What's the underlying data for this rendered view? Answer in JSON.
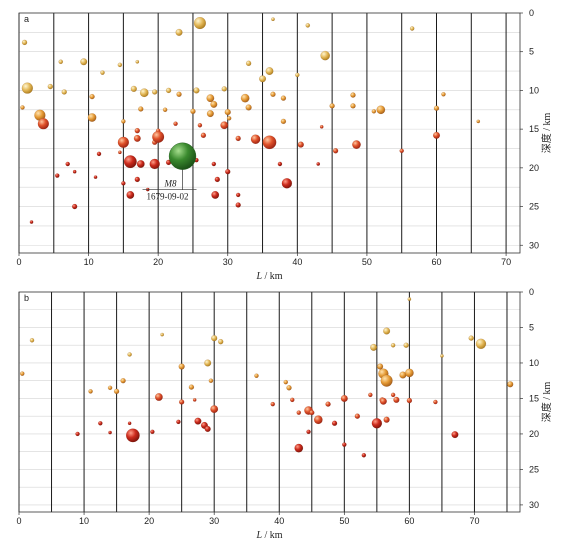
{
  "chart_data": [
    {
      "panel": "a",
      "type": "scatter",
      "xlabel_var": "L",
      "xlabel_unit": "km",
      "ylabel": "深度 / km",
      "xlim": [
        0,
        72
      ],
      "ylim": [
        0,
        31
      ],
      "y_inverted": true,
      "xticks": [
        "0",
        "10",
        "20",
        "30",
        "40",
        "50",
        "60",
        "70"
      ],
      "yticks": [
        "0",
        "5",
        "10",
        "15",
        "20",
        "25",
        "30"
      ],
      "grid": true,
      "vertical_lines_x": [
        0,
        5,
        10,
        15,
        20,
        25,
        30,
        35,
        40,
        45,
        50,
        55,
        60,
        65,
        70
      ],
      "annotation": {
        "magnitude": "M8",
        "date": "1679-09-02",
        "x": 23.5,
        "y": 18.5,
        "size": 3.2,
        "color": "#3a8a2e"
      },
      "points": [
        [
          26,
          1.3,
          1.4
        ],
        [
          23,
          2.5,
          0.8
        ],
        [
          0.8,
          3.8,
          0.6
        ],
        [
          36.5,
          0.8,
          0.4
        ],
        [
          41.5,
          1.6,
          0.5
        ],
        [
          56.5,
          2,
          0.5
        ],
        [
          9.3,
          6.3,
          0.8
        ],
        [
          14.5,
          6.7,
          0.5
        ],
        [
          6,
          6.3,
          0.5
        ],
        [
          12,
          7.7,
          0.5
        ],
        [
          17,
          6.3,
          0.4
        ],
        [
          33,
          6.5,
          0.6
        ],
        [
          36,
          7.5,
          0.9
        ],
        [
          44,
          5.5,
          1.1
        ],
        [
          35,
          8.5,
          0.8
        ],
        [
          40,
          8,
          0.5
        ],
        [
          1.2,
          9.7,
          1.3
        ],
        [
          4.5,
          9.5,
          0.6
        ],
        [
          6.5,
          10.2,
          0.6
        ],
        [
          10.5,
          10.8,
          0.6
        ],
        [
          16.5,
          9.8,
          0.7
        ],
        [
          18,
          10.3,
          1.0
        ],
        [
          19.5,
          10.2,
          0.6
        ],
        [
          21.5,
          10,
          0.6
        ],
        [
          23,
          10.5,
          0.6
        ],
        [
          25.5,
          10,
          0.7
        ],
        [
          27.5,
          11,
          0.9
        ],
        [
          29.5,
          9.8,
          0.6
        ],
        [
          32.5,
          11,
          1.0
        ],
        [
          36.5,
          10.5,
          0.6
        ],
        [
          38,
          11,
          0.6
        ],
        [
          48,
          10.6,
          0.6
        ],
        [
          61,
          10.5,
          0.5
        ],
        [
          0.5,
          12.2,
          0.5
        ],
        [
          3,
          13.2,
          1.3
        ],
        [
          3.5,
          14.3,
          1.3
        ],
        [
          10.5,
          13.5,
          1.0
        ],
        [
          17.5,
          12.4,
          0.6
        ],
        [
          21,
          12.5,
          0.5
        ],
        [
          25,
          12.7,
          0.6
        ],
        [
          27.5,
          13,
          0.8
        ],
        [
          28,
          11.8,
          0.8
        ],
        [
          30,
          12.8,
          0.7
        ],
        [
          33,
          12.2,
          0.7
        ],
        [
          38,
          14,
          0.6
        ],
        [
          45,
          12,
          0.6
        ],
        [
          48,
          12,
          0.6
        ],
        [
          52,
          12.5,
          1.0
        ],
        [
          51,
          12.7,
          0.5
        ],
        [
          15,
          14,
          0.5
        ],
        [
          17,
          15.2,
          0.6
        ],
        [
          20,
          15.2,
          0.5
        ],
        [
          22.5,
          14.3,
          0.5
        ],
        [
          26,
          14.5,
          0.5
        ],
        [
          29.5,
          14.5,
          0.9
        ],
        [
          30.2,
          13.6,
          0.5
        ],
        [
          43.5,
          14.7,
          0.4
        ],
        [
          60,
          12.3,
          0.6
        ],
        [
          66,
          14,
          0.4
        ],
        [
          15,
          16.7,
          1.3
        ],
        [
          17,
          16.2,
          0.8
        ],
        [
          19.5,
          16.7,
          0.6
        ],
        [
          20,
          16,
          1.4
        ],
        [
          26.5,
          15.8,
          0.6
        ],
        [
          31.5,
          16.2,
          0.6
        ],
        [
          36,
          16.7,
          1.6
        ],
        [
          34,
          16.3,
          1.1
        ],
        [
          40.5,
          17,
          0.7
        ],
        [
          48.5,
          17,
          1.0
        ],
        [
          45.5,
          17.8,
          0.6
        ],
        [
          60,
          15.8,
          0.8
        ],
        [
          55,
          17.8,
          0.5
        ],
        [
          11.5,
          18.2,
          0.5
        ],
        [
          14.5,
          18,
          0.4
        ],
        [
          16,
          19.2,
          1.5
        ],
        [
          17.5,
          19.5,
          0.9
        ],
        [
          19.5,
          19.5,
          1.2
        ],
        [
          21.5,
          19.3,
          0.6
        ],
        [
          25.5,
          19,
          0.5
        ],
        [
          28,
          19.5,
          0.5
        ],
        [
          30,
          20.5,
          0.6
        ],
        [
          37.5,
          19.5,
          0.5
        ],
        [
          43,
          19.5,
          0.4
        ],
        [
          7,
          19.5,
          0.5
        ],
        [
          5.5,
          21,
          0.5
        ],
        [
          8,
          20.5,
          0.4
        ],
        [
          11,
          21.2,
          0.4
        ],
        [
          15,
          22,
          0.5
        ],
        [
          17,
          21.5,
          0.6
        ],
        [
          18.5,
          22.8,
          0.4
        ],
        [
          28.5,
          21.5,
          0.6
        ],
        [
          38.5,
          22,
          1.2
        ],
        [
          31.5,
          23.5,
          0.5
        ],
        [
          16,
          23.5,
          0.9
        ],
        [
          28.2,
          23.5,
          0.9
        ],
        [
          31.5,
          24.8,
          0.6
        ],
        [
          8,
          25,
          0.6
        ],
        [
          1.8,
          27,
          0.4
        ]
      ]
    },
    {
      "panel": "b",
      "type": "scatter",
      "xlabel_var": "L",
      "xlabel_unit": "km",
      "ylabel": "深度 / km",
      "xlim": [
        0,
        77
      ],
      "ylim": [
        0,
        31
      ],
      "y_inverted": true,
      "xticks": [
        "0",
        "10",
        "20",
        "30",
        "40",
        "50",
        "60",
        "70"
      ],
      "yticks": [
        "0",
        "5",
        "10",
        "15",
        "20",
        "25",
        "30"
      ],
      "grid": true,
      "vertical_lines_x": [
        0,
        5,
        10,
        15,
        20,
        25,
        30,
        35,
        40,
        45,
        50,
        55,
        60,
        65,
        70,
        75
      ],
      "points": [
        [
          60,
          1,
          0.4
        ],
        [
          2,
          6.8,
          0.5
        ],
        [
          22,
          6,
          0.4
        ],
        [
          30,
          6.5,
          0.7
        ],
        [
          31,
          7,
          0.6
        ],
        [
          54.5,
          7.8,
          0.8
        ],
        [
          56.5,
          5.5,
          0.8
        ],
        [
          57.5,
          7.5,
          0.5
        ],
        [
          59.5,
          7.5,
          0.6
        ],
        [
          69.5,
          6.5,
          0.6
        ],
        [
          71,
          7.3,
          1.2
        ],
        [
          17,
          8.8,
          0.5
        ],
        [
          25,
          10.5,
          0.7
        ],
        [
          29,
          10,
          0.8
        ],
        [
          36.5,
          11.8,
          0.5
        ],
        [
          55.5,
          10.5,
          0.7
        ],
        [
          56,
          11.5,
          1.2
        ],
        [
          56.5,
          12.5,
          1.4
        ],
        [
          59,
          11.7,
          0.8
        ],
        [
          60,
          11.4,
          1.0
        ],
        [
          65,
          9,
          0.4
        ],
        [
          0.5,
          11.5,
          0.5
        ],
        [
          14,
          13.5,
          0.5
        ],
        [
          16,
          12.5,
          0.6
        ],
        [
          15,
          14,
          0.6
        ],
        [
          26.5,
          13.4,
          0.6
        ],
        [
          29.5,
          12.5,
          0.5
        ],
        [
          41,
          12.7,
          0.5
        ],
        [
          41.5,
          13.5,
          0.6
        ],
        [
          54,
          14.5,
          0.5
        ],
        [
          55.8,
          15.2,
          0.6
        ],
        [
          57.5,
          14.5,
          0.5
        ],
        [
          75.5,
          13,
          0.7
        ],
        [
          11,
          14,
          0.5
        ],
        [
          21.5,
          14.8,
          0.9
        ],
        [
          25,
          15.5,
          0.6
        ],
        [
          27,
          15.2,
          0.4
        ],
        [
          30,
          16.5,
          0.9
        ],
        [
          39,
          15.8,
          0.5
        ],
        [
          42,
          15.2,
          0.5
        ],
        [
          47.5,
          15.8,
          0.6
        ],
        [
          50,
          15,
          0.8
        ],
        [
          56,
          15.4,
          0.8
        ],
        [
          58,
          15.2,
          0.7
        ],
        [
          60,
          15.3,
          0.6
        ],
        [
          64,
          15.5,
          0.5
        ],
        [
          44.5,
          16.7,
          1.0
        ],
        [
          45,
          17,
          0.6
        ],
        [
          43,
          17,
          0.5
        ],
        [
          46,
          18,
          1.0
        ],
        [
          48.5,
          18.5,
          0.6
        ],
        [
          52,
          17.5,
          0.6
        ],
        [
          55,
          18.5,
          1.2
        ],
        [
          56.5,
          18,
          0.7
        ],
        [
          12.5,
          18.5,
          0.5
        ],
        [
          17,
          18.5,
          0.4
        ],
        [
          24.5,
          18.3,
          0.5
        ],
        [
          27.5,
          18.2,
          0.8
        ],
        [
          28.5,
          18.8,
          0.8
        ],
        [
          29,
          19.3,
          0.7
        ],
        [
          9,
          20,
          0.5
        ],
        [
          14,
          19.8,
          0.4
        ],
        [
          17.5,
          20.2,
          1.6
        ],
        [
          20.5,
          19.7,
          0.5
        ],
        [
          44.5,
          19.7,
          0.5
        ],
        [
          67,
          20.1,
          0.8
        ],
        [
          43,
          22,
          1.0
        ],
        [
          50,
          21.5,
          0.5
        ],
        [
          53,
          23,
          0.5
        ]
      ]
    }
  ]
}
